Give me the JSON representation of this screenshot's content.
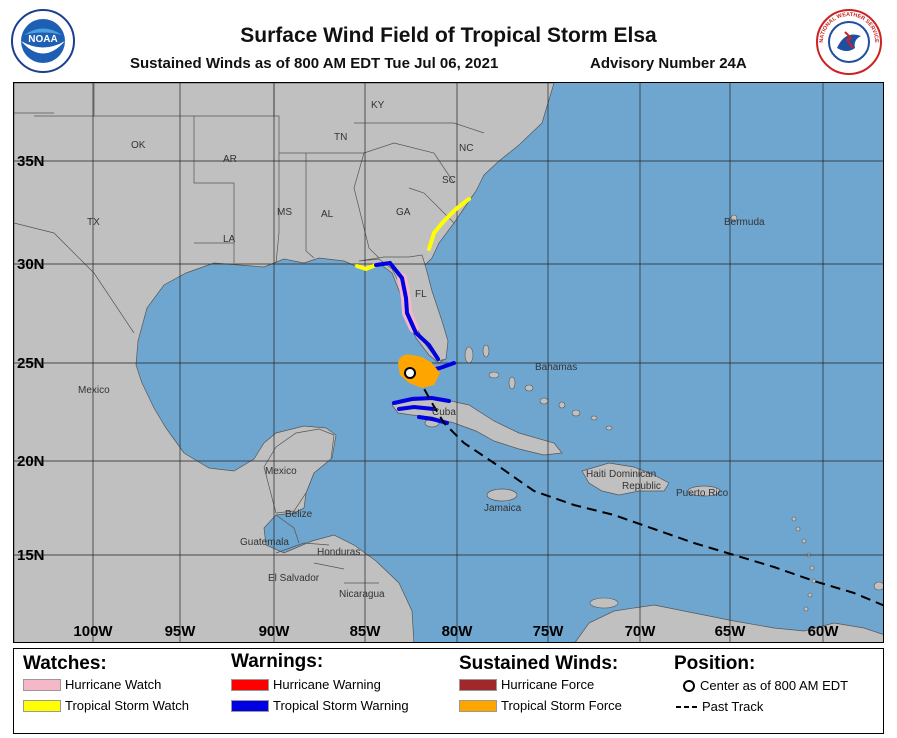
{
  "header": {
    "title": "Surface Wind Field of Tropical Storm Elsa",
    "subtitle": "Sustained Winds as of 800 AM EDT Tue Jul 06, 2021",
    "advisory": "Advisory Number 24A",
    "noaa_logo_text": "NOAA",
    "nws_logo_text": "NATIONAL WEATHER SERVICE"
  },
  "map": {
    "latitude_labels": [
      "35N",
      "30N",
      "25N",
      "20N",
      "15N"
    ],
    "longitude_labels": [
      "100W",
      "95W",
      "90W",
      "85W",
      "80W",
      "75W",
      "70W",
      "65W",
      "60W"
    ],
    "place_labels": {
      "ky": "KY",
      "ok": "OK",
      "tn": "TN",
      "nc": "NC",
      "ar": "AR",
      "sc": "SC",
      "ms": "MS",
      "al": "AL",
      "ga": "GA",
      "tx": "TX",
      "la": "LA",
      "fl": "FL",
      "bermuda": "Bermuda",
      "bahamas": "Bahamas",
      "mexico1": "Mexico",
      "mexico2": "Mexico",
      "cuba": "Cuba",
      "haiti": "Haiti",
      "dominican": "Dominican",
      "republic": "Republic",
      "puerto_rico": "Puerto Rico",
      "jamaica": "Jamaica",
      "belize": "Belize",
      "guatemala": "Guatemala",
      "honduras": "Honduras",
      "el_salvador": "El Salvador",
      "nicaragua": "Nicaragua"
    },
    "colors": {
      "ocean": "#6fa6cf",
      "land": "#c0c0c0",
      "hurricane_watch": "#f4b8c8",
      "tropical_storm_watch": "#ffff00",
      "hurricane_warning": "#ff0000",
      "tropical_storm_warning": "#0000e0",
      "hurricane_force": "#a0282a",
      "tropical_storm_force": "#ffa500"
    }
  },
  "legend": {
    "watches_heading": "Watches:",
    "hurricane_watch": "Hurricane Watch",
    "tropical_storm_watch": "Tropical Storm Watch",
    "warnings_heading": "Warnings:",
    "hurricane_warning": "Hurricane Warning",
    "tropical_storm_warning": "Tropical Storm Warning",
    "winds_heading": "Sustained Winds:",
    "hurricane_force": "Hurricane Force",
    "tropical_storm_force": "Tropical Storm Force",
    "position_heading": "Position:",
    "center": "Center as of 800 AM EDT",
    "past_track": "Past Track"
  }
}
